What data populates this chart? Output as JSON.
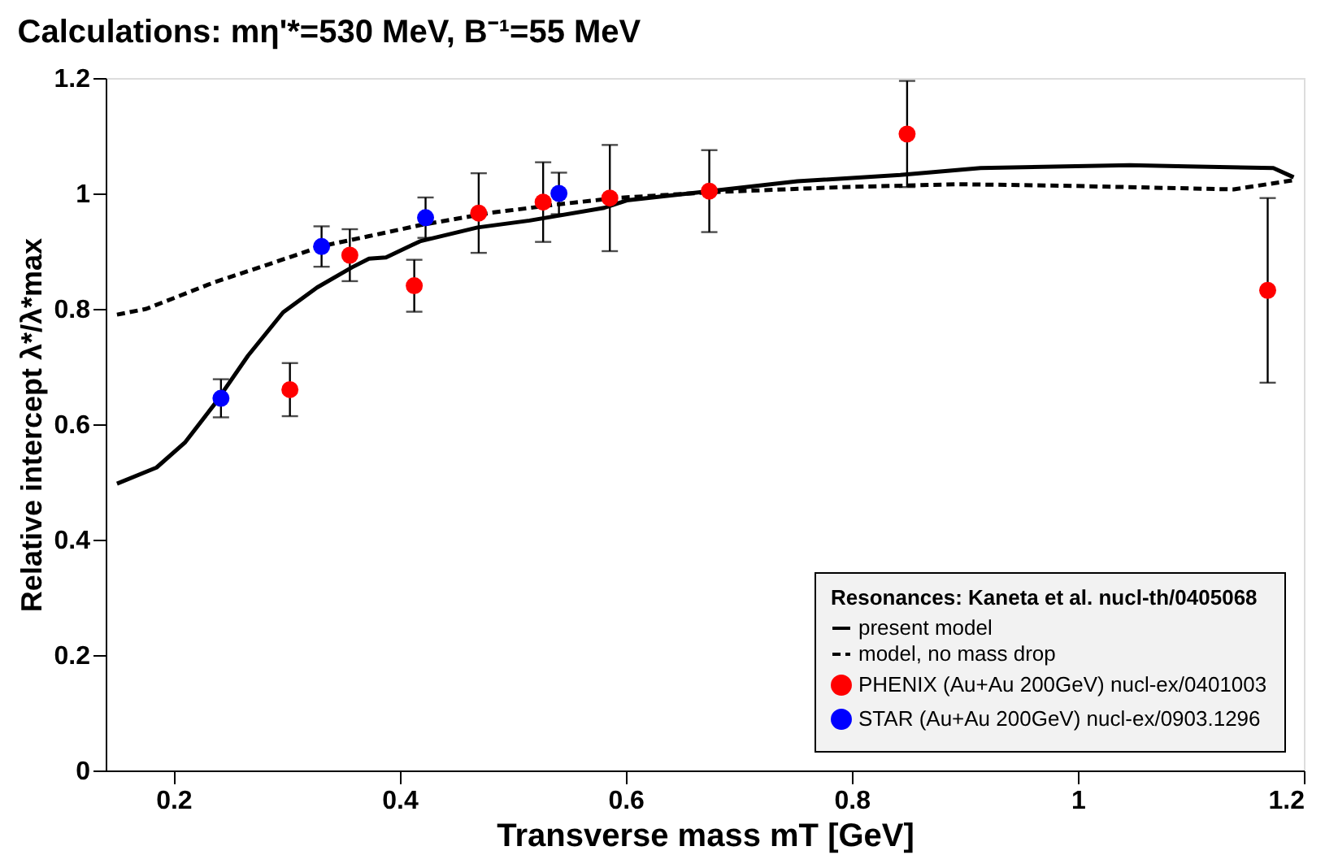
{
  "chart_data": {
    "type": "scatter",
    "title": "Calculations: mη'*=530 MeV, B⁻¹=55 MeV",
    "xlabel": "Transverse mass    mT [GeV]",
    "ylabel": "Relative intercept    λ*/λ*max",
    "legend_title": "Resonances: Kaneta et al. nucl-th/0405068",
    "legend": "bottom right",
    "grid": false,
    "xlim": [
      0.14,
      1.2
    ],
    "xticks": [
      0.2,
      0.4,
      0.6,
      0.8,
      1,
      1.2
    ],
    "ylim": [
      0,
      1.2
    ],
    "yticks": [
      0,
      0.2,
      0.4,
      0.6,
      0.8,
      1,
      1.2
    ],
    "series": [
      {
        "name": "present model",
        "type": "line",
        "line_style": "solid",
        "color": "#000000",
        "x": [
          0.15,
          0.185,
          0.21,
          0.236,
          0.266,
          0.297,
          0.327,
          0.358,
          0.373,
          0.388,
          0.418,
          0.469,
          0.515,
          0.581,
          0.601,
          0.674,
          0.752,
          0.843,
          0.914,
          1.046,
          1.097,
          1.173,
          1.191
        ],
        "values": [
          0.497,
          0.525,
          0.568,
          0.634,
          0.719,
          0.794,
          0.837,
          0.872,
          0.887,
          0.889,
          0.917,
          0.941,
          0.953,
          0.975,
          0.988,
          1.004,
          1.021,
          1.032,
          1.044,
          1.049,
          1.047,
          1.044,
          1.028
        ]
      },
      {
        "name": "model, no mass drop",
        "type": "line",
        "line_style": "dashed",
        "color": "#000000",
        "x": [
          0.15,
          0.176,
          0.236,
          0.287,
          0.332,
          0.373,
          0.418,
          0.479,
          0.54,
          0.591,
          0.674,
          0.793,
          0.895,
          0.996,
          1.138,
          1.191
        ],
        "values": [
          0.79,
          0.8,
          0.846,
          0.879,
          0.909,
          0.926,
          0.945,
          0.966,
          0.981,
          0.992,
          1.002,
          1.011,
          1.016,
          1.013,
          1.007,
          1.023
        ]
      },
      {
        "name": "PHENIX (Au+Au 200GeV) nucl-ex/0401003",
        "marker": "circle",
        "color": "#ff0000",
        "x": [
          0.303,
          0.356,
          0.413,
          0.47,
          0.527,
          0.586,
          0.674,
          0.849,
          1.168
        ],
        "values": [
          0.66,
          0.893,
          0.84,
          0.966,
          0.985,
          0.992,
          1.004,
          1.103,
          0.832
        ],
        "errors": [
          0.046,
          0.045,
          0.045,
          0.069,
          0.069,
          0.092,
          0.071,
          0.092,
          0.16
        ]
      },
      {
        "name": "STAR (Au+Au 200GeV) nucl-ex/0903.1296",
        "marker": "circle",
        "color": "#0000ff",
        "x": [
          0.242,
          0.331,
          0.423,
          0.541
        ],
        "values": [
          0.645,
          0.908,
          0.958,
          1.0
        ],
        "errors": [
          0.033,
          0.035,
          0.035,
          0.036
        ]
      }
    ]
  }
}
